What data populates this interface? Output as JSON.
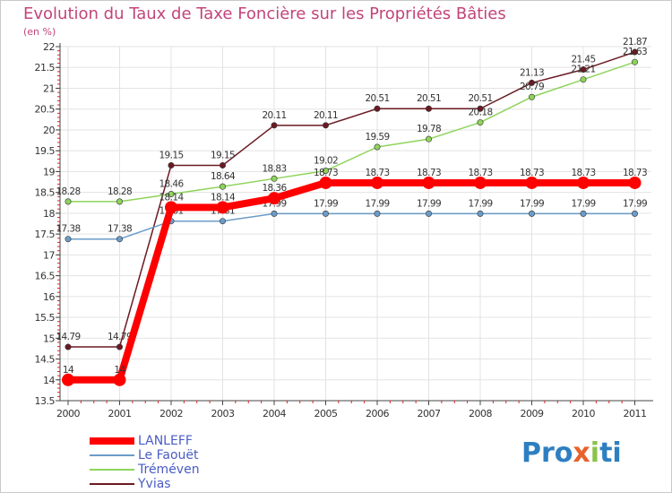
{
  "header": {
    "title": "Evolution du Taux de Taxe Foncière sur les Propriétés Bâties",
    "unit": "(en %)"
  },
  "chart_data": {
    "type": "line",
    "title": "Evolution du Taux de Taxe Foncière sur les Propriétés Bâties",
    "ylabel": "(en %)",
    "xlabel": "",
    "ylim": [
      13.5,
      22
    ],
    "yticks": [
      "13.5",
      "14",
      "14.5",
      "15",
      "15.5",
      "16",
      "16.5",
      "17",
      "17.5",
      "18",
      "18.5",
      "19",
      "19.5",
      "20",
      "20.5",
      "21",
      "21.5",
      "22"
    ],
    "categories": [
      "2000",
      "2001",
      "2002",
      "2003",
      "2004",
      "2005",
      "2006",
      "2007",
      "2008",
      "2009",
      "2010",
      "2011"
    ],
    "series": [
      {
        "name": "Yvias",
        "color": "#6b1a22",
        "values": [
          14.79,
          14.79,
          19.15,
          19.15,
          20.11,
          20.11,
          20.51,
          20.51,
          20.51,
          21.13,
          21.45,
          21.87
        ],
        "labels": [
          "14.79",
          "14.79",
          "19.15",
          "19.15",
          "20.11",
          "20.11",
          "20.51",
          "20.51",
          "20.51",
          "21.13",
          "21.45",
          "21.87"
        ]
      },
      {
        "name": "Tréméven",
        "color": "#8ed45a",
        "values": [
          18.28,
          18.28,
          18.46,
          18.64,
          18.83,
          19.02,
          19.59,
          19.78,
          20.18,
          20.79,
          21.21,
          21.63
        ],
        "labels": [
          "18.28",
          "18.28",
          "18.46",
          "18.64",
          "18.83",
          "19.02",
          "19.59",
          "19.78",
          "20.18",
          "20.79",
          "21.21",
          "21.63"
        ]
      },
      {
        "name": "Le Faouët",
        "color": "#6b9cc8",
        "values": [
          17.38,
          17.38,
          17.81,
          17.81,
          17.99,
          17.99,
          17.99,
          17.99,
          17.99,
          17.99,
          17.99,
          17.99
        ],
        "labels": [
          "17.38",
          "17.38",
          "17.81",
          "17.81",
          "17.99",
          "17.99",
          "17.99",
          "17.99",
          "17.99",
          "17.99",
          "17.99",
          "17.99"
        ]
      },
      {
        "name": "LANLEFF",
        "color": "#ff0000",
        "values": [
          14,
          14,
          18.14,
          18.14,
          18.36,
          18.73,
          18.73,
          18.73,
          18.73,
          18.73,
          18.73,
          18.73
        ],
        "labels": [
          "14",
          "14",
          "18.14",
          "18.14",
          "18.36",
          "18.73",
          "18.73",
          "18.73",
          "18.73",
          "18.73",
          "18.73",
          "18.73"
        ]
      }
    ],
    "legend": [
      "LANLEFF",
      "Le Faouët",
      "Tréméven",
      "Yvias"
    ]
  },
  "legend": {
    "items": [
      {
        "label": "LANLEFF",
        "color": "#ff0000"
      },
      {
        "label": "Le Faouët",
        "color": "#6b9cc8"
      },
      {
        "label": "Tréméven",
        "color": "#8ed45a"
      },
      {
        "label": "Yvias",
        "color": "#6b1a22"
      }
    ]
  },
  "logo": {
    "p1": "Pro",
    "p2": "x",
    "p3": "i",
    "p4": "ti"
  }
}
